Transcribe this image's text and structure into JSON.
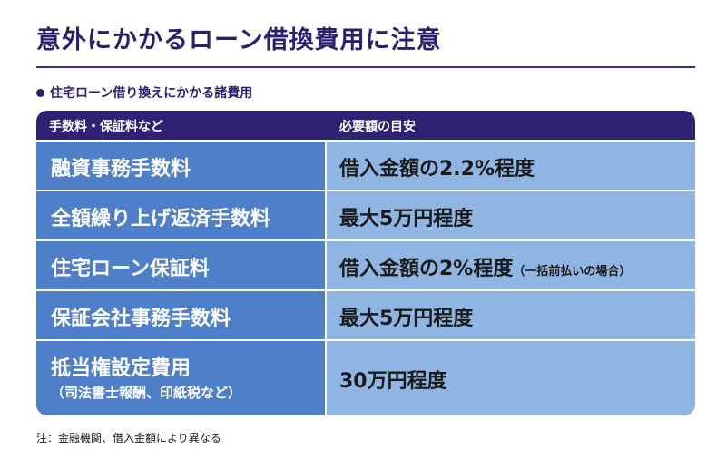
{
  "title": "意外にかかるローン借換費用に注意",
  "subtitle": "住宅ローン借り換えにかかる諸費用",
  "table": {
    "headers": [
      "手数料・保証料など",
      "必要額の目安"
    ],
    "rows": [
      {
        "item": "融資事務手数料",
        "amount": "借入金額の2.2%程度",
        "amount_note": ""
      },
      {
        "item": "全額繰り上げ返済手数料",
        "amount": "最大5万円程度",
        "amount_note": ""
      },
      {
        "item": "住宅ローン保証料",
        "amount": "借入金額の2%程度",
        "amount_note": "（一括前払いの場合）"
      },
      {
        "item": "保証会社事務手数料",
        "amount": "最大5万円程度",
        "amount_note": ""
      },
      {
        "item": "抵当権設定費用",
        "item_note": "（司法書士報酬、印紙税など）",
        "amount": "30万円程度",
        "amount_note": ""
      }
    ]
  },
  "note": "注：金融機関、借入金額により異なる"
}
